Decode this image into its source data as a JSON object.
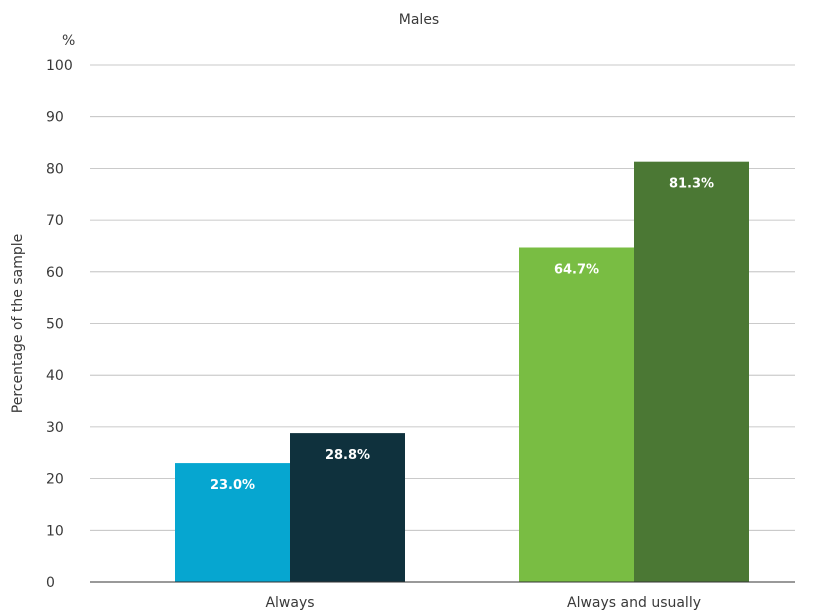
{
  "chart_data": {
    "type": "bar",
    "title": "Males",
    "unit": "%",
    "ylabel": "Percentage of the sample",
    "xlabel": "",
    "ylim": [
      0,
      100
    ],
    "yticks": [
      0,
      10,
      20,
      30,
      40,
      50,
      60,
      70,
      80,
      90,
      100
    ],
    "grid": true,
    "categories": [
      "Always",
      "Always and usually"
    ],
    "series": [
      {
        "values": [
          23.0,
          64.7
        ],
        "colors": [
          "#06a6d0",
          "#79bd43"
        ]
      },
      {
        "values": [
          28.8,
          81.3
        ],
        "colors": [
          "#0f313d",
          "#4b7834"
        ]
      }
    ],
    "data_labels": [
      [
        "23.0%",
        "64.7%"
      ],
      [
        "28.8%",
        "81.3%"
      ]
    ]
  }
}
